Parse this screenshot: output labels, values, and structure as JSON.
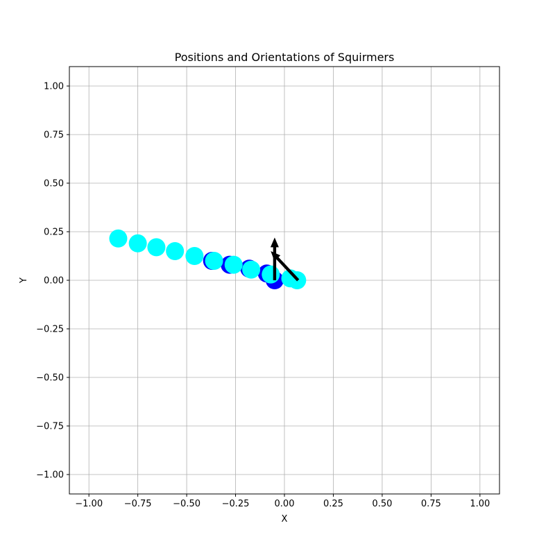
{
  "chart_data": {
    "type": "scatter",
    "title": "Positions and Orientations of Squirmers",
    "xlabel": "X",
    "ylabel": "Y",
    "xlim": [
      -1.1,
      1.1
    ],
    "ylim": [
      -1.1,
      1.1
    ],
    "grid": true,
    "x_ticks": [
      -1.0,
      -0.75,
      -0.5,
      -0.25,
      0.0,
      0.25,
      0.5,
      0.75,
      1.0
    ],
    "x_tick_labels": [
      "−1.00",
      "−0.75",
      "−0.50",
      "−0.25",
      "0.00",
      "0.25",
      "0.50",
      "0.75",
      "1.00"
    ],
    "y_ticks": [
      -1.0,
      -0.75,
      -0.5,
      -0.25,
      0.0,
      0.25,
      0.5,
      0.75,
      1.0
    ],
    "y_tick_labels": [
      "−1.00",
      "−0.75",
      "−0.50",
      "−0.25",
      "0.00",
      "0.25",
      "0.50",
      "0.75",
      "1.00"
    ],
    "series": [
      {
        "color": "#0000ff",
        "points": [
          {
            "x": -0.37,
            "y": 0.1
          },
          {
            "x": -0.28,
            "y": 0.08
          },
          {
            "x": -0.18,
            "y": 0.06
          },
          {
            "x": -0.09,
            "y": 0.035
          },
          {
            "x": -0.05,
            "y": 0.0
          }
        ]
      },
      {
        "color": "#00ffff",
        "points": [
          {
            "x": -0.85,
            "y": 0.215
          },
          {
            "x": -0.75,
            "y": 0.19
          },
          {
            "x": -0.655,
            "y": 0.17
          },
          {
            "x": -0.56,
            "y": 0.15
          },
          {
            "x": -0.46,
            "y": 0.125
          },
          {
            "x": -0.36,
            "y": 0.1
          },
          {
            "x": -0.26,
            "y": 0.08
          },
          {
            "x": -0.17,
            "y": 0.055
          },
          {
            "x": -0.07,
            "y": 0.03
          },
          {
            "x": 0.03,
            "y": 0.01
          },
          {
            "x": 0.065,
            "y": 0.0
          }
        ]
      }
    ],
    "orientation_arrows": [
      {
        "x": -0.05,
        "y": 0.0,
        "dx": 0.0,
        "dy": 0.22,
        "color": "#000000"
      },
      {
        "x": 0.07,
        "y": 0.0,
        "dx": -0.14,
        "dy": 0.15,
        "color": "#000000"
      }
    ]
  }
}
